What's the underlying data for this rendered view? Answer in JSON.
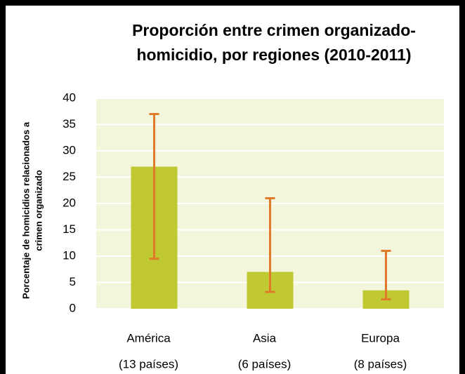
{
  "chart_data": {
    "type": "bar",
    "title": [
      "Proporción entre crimen organizado-",
      "homicidio, por regiones (2010-2011)"
    ],
    "ylabel": [
      "Porcentaje de homicidios relacionados a",
      "crimen organizado"
    ],
    "categories": [
      "América",
      "Asia",
      "Europa"
    ],
    "category_sublabels": [
      "(13 países)",
      "(6 países)",
      "(8 países)"
    ],
    "values": [
      27,
      7,
      3.5
    ],
    "error_lower": [
      9.5,
      3.2,
      1.8
    ],
    "error_upper": [
      37,
      21,
      11
    ],
    "color": "#c0c832",
    "error_color": "#e07b2a",
    "plot_background": "#f4f6dc",
    "ylim": [
      0,
      40
    ],
    "yticks": [
      0,
      5,
      10,
      15,
      20,
      25,
      30,
      35,
      40
    ],
    "grid": true
  }
}
